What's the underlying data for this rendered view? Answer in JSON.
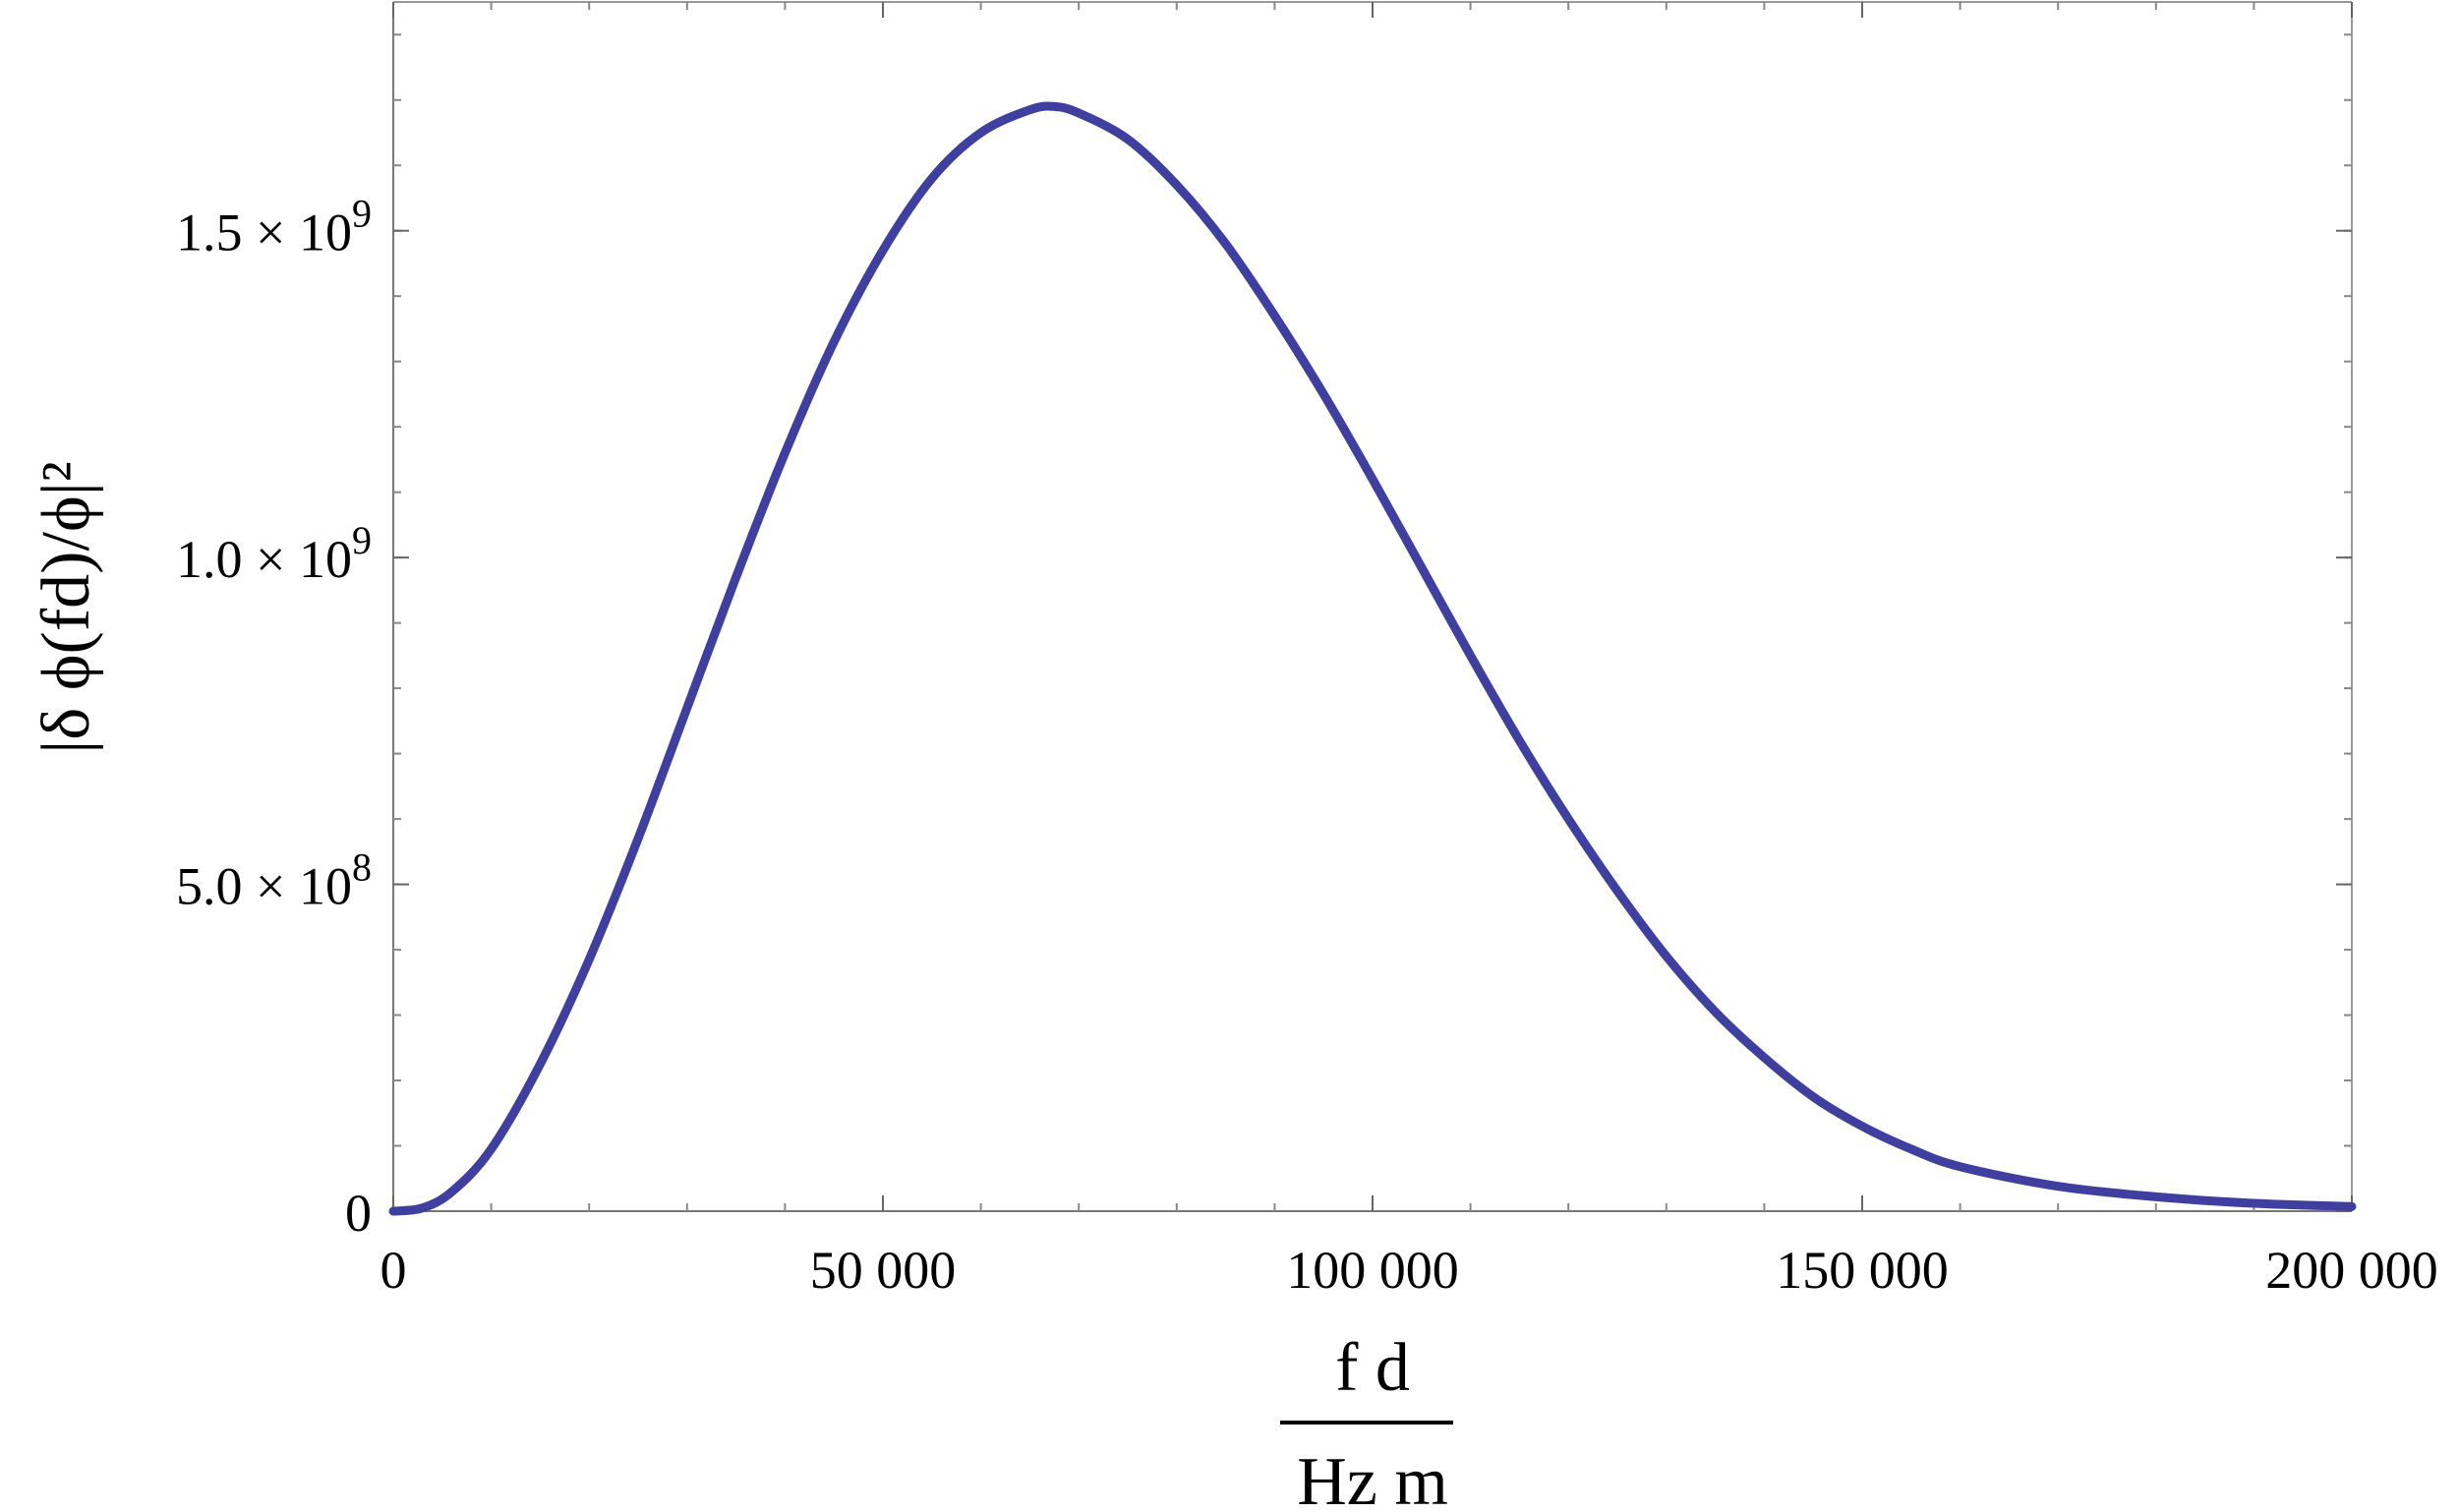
{
  "chart_data": {
    "type": "line",
    "title": "",
    "xlabel": {
      "numerator": "f d",
      "denominator": "Hz m"
    },
    "ylabel": "|δ ϕ(fd)/ϕ|²",
    "xlim": [
      0,
      200000
    ],
    "ylim": [
      0,
      1850000000
    ],
    "grid": false,
    "x_ticks": [
      {
        "value": 0,
        "label": "0"
      },
      {
        "value": 50000,
        "label": "50 000"
      },
      {
        "value": 100000,
        "label": "100 000"
      },
      {
        "value": 150000,
        "label": "150 000"
      },
      {
        "value": 200000,
        "label": "200 000"
      }
    ],
    "y_ticks": [
      {
        "value": 0,
        "mantissa": "0",
        "exponent": ""
      },
      {
        "value": 500000000,
        "mantissa": "5.0 × 10",
        "exponent": "8"
      },
      {
        "value": 1000000000,
        "mantissa": "1.0 × 10",
        "exponent": "9"
      },
      {
        "value": 1500000000,
        "mantissa": "1.5 × 10",
        "exponent": "9"
      }
    ],
    "series": [
      {
        "color": "#3f3f9f",
        "x": [
          0,
          3000,
          6000,
          10000,
          15000,
          20000,
          25000,
          30000,
          35000,
          40000,
          45000,
          50000,
          55000,
          60000,
          65000,
          67500,
          70000,
          75000,
          80000,
          85000,
          90000,
          95000,
          100000,
          105000,
          110000,
          115000,
          120000,
          125000,
          130000,
          135000,
          140000,
          145000,
          150000,
          155000,
          160000,
          170000,
          180000,
          190000,
          200000
        ],
        "y": [
          0,
          5000000,
          30000000,
          95000000,
          225000000,
          385000000,
          570000000,
          770000000,
          970000000,
          1160000000,
          1330000000,
          1470000000,
          1580000000,
          1650000000,
          1685000000,
          1690000000,
          1680000000,
          1640000000,
          1570000000,
          1480000000,
          1370000000,
          1250000000,
          1120000000,
          985000000,
          850000000,
          720000000,
          600000000,
          490000000,
          390000000,
          305000000,
          235000000,
          175000000,
          130000000,
          95000000,
          68000000,
          38000000,
          22000000,
          12000000,
          7000000
        ]
      }
    ]
  }
}
